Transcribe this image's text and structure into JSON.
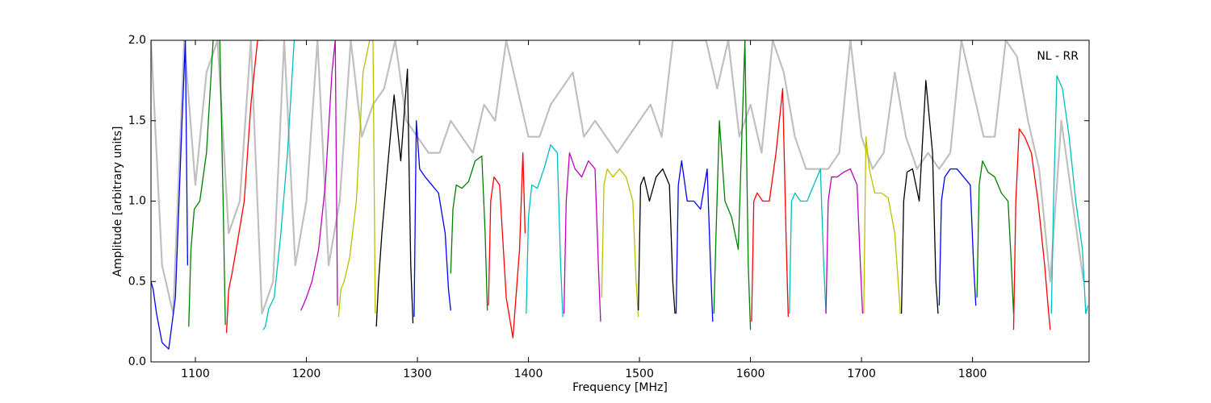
{
  "chart_data": {
    "type": "line",
    "annotation": "NL - RR",
    "xlabel": "Frequency [MHz]",
    "ylabel": "Amplitude [arbitrary units]",
    "xlim": [
      1060,
      1905
    ],
    "ylim": [
      0,
      2
    ],
    "xticks": [
      1100,
      1200,
      1300,
      1400,
      1500,
      1600,
      1700,
      1800
    ],
    "yticks": [
      {
        "value": 0,
        "label": "0.0"
      },
      0.5,
      {
        "value": 1,
        "label": "1.0"
      },
      1.5,
      {
        "value": 2,
        "label": "2.0"
      }
    ],
    "grid": false,
    "series": [
      {
        "color": "#c0c0c0",
        "width": 2.2,
        "x": [
          1060,
          1070,
          1080,
          1090,
          1100,
          1110,
          1120,
          1130,
          1140,
          1150,
          1160,
          1170,
          1180,
          1190,
          1200,
          1210,
          1220,
          1230,
          1240,
          1250,
          1260,
          1270,
          1280,
          1290,
          1300,
          1310,
          1320,
          1330,
          1340,
          1350,
          1360,
          1370,
          1380,
          1390,
          1400,
          1410,
          1420,
          1430,
          1440,
          1450,
          1460,
          1470,
          1480,
          1490,
          1500,
          1510,
          1520,
          1530,
          1540,
          1550,
          1560,
          1570,
          1580,
          1590,
          1600,
          1610,
          1620,
          1630,
          1640,
          1650,
          1660,
          1670,
          1680,
          1690,
          1700,
          1710,
          1720,
          1730,
          1740,
          1750,
          1760,
          1770,
          1780,
          1790,
          1800,
          1810,
          1820,
          1830,
          1840,
          1850,
          1860,
          1870,
          1880,
          1890,
          1900
        ],
        "values": [
          2.0,
          0.6,
          0.3,
          2.0,
          1.1,
          1.8,
          2.0,
          0.8,
          1.0,
          2.0,
          0.3,
          0.5,
          2.0,
          0.6,
          1.0,
          2.0,
          0.6,
          1.0,
          2.0,
          1.4,
          1.6,
          1.7,
          2.0,
          1.5,
          1.4,
          1.3,
          1.3,
          1.5,
          1.4,
          1.3,
          1.6,
          1.5,
          2.0,
          1.7,
          1.4,
          1.4,
          1.6,
          1.7,
          1.8,
          1.4,
          1.5,
          1.4,
          1.3,
          1.4,
          1.5,
          1.6,
          1.4,
          2.0,
          2.0,
          2.0,
          2.0,
          1.7,
          2.0,
          1.4,
          1.6,
          1.3,
          2.0,
          1.8,
          1.4,
          1.2,
          1.2,
          1.2,
          1.3,
          2.0,
          1.4,
          1.2,
          1.3,
          1.8,
          1.4,
          1.2,
          1.3,
          1.2,
          1.3,
          2.0,
          1.7,
          1.4,
          1.4,
          2.0,
          1.9,
          1.5,
          1.2,
          0.5,
          1.5,
          1.0,
          0.5
        ]
      },
      {
        "color": "#0000ff",
        "x": [
          1060,
          1062,
          1065,
          1070,
          1076,
          1082,
          1088,
          1091,
          1093
        ],
        "values": [
          0.5,
          0.45,
          0.3,
          0.12,
          0.08,
          0.4,
          1.5,
          2.0,
          0.6
        ]
      },
      {
        "color": "#008000",
        "x": [
          1094,
          1096,
          1099,
          1104,
          1110,
          1116,
          1122,
          1125,
          1127
        ],
        "values": [
          0.22,
          0.7,
          0.95,
          1.0,
          1.3,
          2.0,
          2.0,
          1.0,
          0.23
        ]
      },
      {
        "color": "#ff0000",
        "x": [
          1128,
          1130,
          1133,
          1138,
          1144,
          1150,
          1156,
          1159,
          1161
        ],
        "values": [
          0.18,
          0.45,
          0.55,
          0.75,
          1.0,
          1.6,
          2.0,
          2.0,
          2.0
        ]
      },
      {
        "color": "#00bfbf",
        "x": [
          1161,
          1163,
          1166,
          1171,
          1177,
          1183,
          1189,
          1192,
          1194
        ],
        "values": [
          0.2,
          0.22,
          0.33,
          0.4,
          0.8,
          1.3,
          2.0,
          2.0,
          2.0
        ]
      },
      {
        "color": "#bf00bf",
        "x": [
          1195,
          1197,
          1200,
          1205,
          1211,
          1217,
          1223,
          1226,
          1228
        ],
        "values": [
          0.32,
          0.35,
          0.4,
          0.5,
          0.7,
          1.1,
          1.8,
          2.0,
          0.35
        ]
      },
      {
        "color": "#bfbf00",
        "x": [
          1229,
          1231,
          1234,
          1239,
          1245,
          1251,
          1257,
          1260,
          1262
        ],
        "values": [
          0.28,
          0.45,
          0.5,
          0.65,
          1.0,
          1.8,
          2.0,
          2.0,
          0.3
        ]
      },
      {
        "color": "#000000",
        "x": [
          1263,
          1265,
          1268,
          1273,
          1279,
          1285,
          1291,
          1294,
          1296
        ],
        "values": [
          0.22,
          0.5,
          0.8,
          1.2,
          1.66,
          1.25,
          1.82,
          0.6,
          0.24
        ]
      },
      {
        "color": "#0000ff",
        "x": [
          1297,
          1299,
          1302,
          1307,
          1313,
          1319,
          1325,
          1328,
          1330
        ],
        "values": [
          0.28,
          1.5,
          1.2,
          1.15,
          1.1,
          1.05,
          0.8,
          0.45,
          0.32
        ]
      },
      {
        "color": "#008000",
        "x": [
          1330,
          1332,
          1335,
          1340,
          1346,
          1352,
          1358,
          1361,
          1363
        ],
        "values": [
          0.55,
          0.95,
          1.1,
          1.08,
          1.12,
          1.25,
          1.28,
          0.8,
          0.32
        ]
      },
      {
        "color": "#ff0000",
        "x": [
          1364,
          1366,
          1369,
          1374,
          1380,
          1386,
          1392,
          1395,
          1397
        ],
        "values": [
          0.35,
          1.0,
          1.15,
          1.1,
          0.4,
          0.15,
          0.7,
          1.3,
          0.8
        ]
      },
      {
        "color": "#00bfbf",
        "x": [
          1398,
          1400,
          1403,
          1408,
          1414,
          1420,
          1426,
          1429,
          1431
        ],
        "values": [
          0.3,
          0.9,
          1.1,
          1.08,
          1.2,
          1.35,
          1.3,
          0.6,
          0.28
        ]
      },
      {
        "color": "#bf00bf",
        "x": [
          1432,
          1434,
          1437,
          1442,
          1448,
          1454,
          1460,
          1463,
          1465
        ],
        "values": [
          0.3,
          1.0,
          1.3,
          1.2,
          1.15,
          1.25,
          1.2,
          0.6,
          0.25
        ]
      },
      {
        "color": "#bfbf00",
        "x": [
          1466,
          1468,
          1471,
          1476,
          1482,
          1488,
          1494,
          1497,
          1499
        ],
        "values": [
          0.4,
          1.1,
          1.2,
          1.15,
          1.2,
          1.15,
          1.0,
          0.5,
          0.28
        ]
      },
      {
        "color": "#000000",
        "x": [
          1499,
          1501,
          1504,
          1509,
          1515,
          1521,
          1527,
          1530,
          1532
        ],
        "values": [
          0.32,
          1.1,
          1.15,
          1.0,
          1.15,
          1.2,
          1.1,
          0.5,
          0.3
        ]
      },
      {
        "color": "#0000ff",
        "x": [
          1533,
          1535,
          1538,
          1543,
          1549,
          1555,
          1561,
          1564,
          1566
        ],
        "values": [
          0.3,
          1.1,
          1.25,
          1.0,
          1.0,
          0.95,
          1.2,
          0.6,
          0.25
        ]
      },
      {
        "color": "#008000",
        "x": [
          1567,
          1569,
          1572,
          1577,
          1583,
          1589,
          1595,
          1598,
          1600
        ],
        "values": [
          0.3,
          0.8,
          1.5,
          1.0,
          0.9,
          0.7,
          2.0,
          0.6,
          0.2
        ]
      },
      {
        "color": "#ff0000",
        "x": [
          1601,
          1603,
          1606,
          1611,
          1617,
          1623,
          1629,
          1632,
          1634
        ],
        "values": [
          0.25,
          1.0,
          1.05,
          1.0,
          1.0,
          1.3,
          1.7,
          0.8,
          0.28
        ]
      },
      {
        "color": "#00bfbf",
        "x": [
          1635,
          1637,
          1640,
          1645,
          1651,
          1657,
          1663,
          1666,
          1668
        ],
        "values": [
          0.3,
          1.0,
          1.05,
          1.0,
          1.0,
          1.1,
          1.2,
          0.6,
          0.3
        ]
      },
      {
        "color": "#bf00bf",
        "x": [
          1668,
          1670,
          1673,
          1678,
          1684,
          1690,
          1696,
          1699,
          1701
        ],
        "values": [
          0.3,
          1.0,
          1.15,
          1.15,
          1.18,
          1.2,
          1.1,
          0.6,
          0.3
        ]
      },
      {
        "color": "#bfbf00",
        "x": [
          1702,
          1704,
          1707,
          1712,
          1718,
          1724,
          1730,
          1733,
          1735
        ],
        "values": [
          0.3,
          1.4,
          1.2,
          1.05,
          1.05,
          1.02,
          0.8,
          0.5,
          0.3
        ]
      },
      {
        "color": "#000000",
        "x": [
          1736,
          1738,
          1741,
          1746,
          1752,
          1758,
          1764,
          1767,
          1769
        ],
        "values": [
          0.3,
          1.0,
          1.18,
          1.2,
          1.0,
          1.75,
          1.3,
          0.5,
          0.3
        ]
      },
      {
        "color": "#0000ff",
        "x": [
          1770,
          1772,
          1775,
          1780,
          1786,
          1792,
          1798,
          1801,
          1803
        ],
        "values": [
          0.35,
          1.0,
          1.15,
          1.2,
          1.2,
          1.15,
          1.1,
          0.6,
          0.35
        ]
      },
      {
        "color": "#008000",
        "x": [
          1804,
          1806,
          1809,
          1814,
          1820,
          1826,
          1832,
          1835,
          1837
        ],
        "values": [
          0.4,
          1.1,
          1.25,
          1.18,
          1.15,
          1.05,
          1.0,
          0.6,
          0.3
        ]
      },
      {
        "color": "#ff0000",
        "x": [
          1837,
          1839,
          1842,
          1847,
          1853,
          1859,
          1865,
          1868,
          1870
        ],
        "values": [
          0.2,
          1.0,
          1.45,
          1.4,
          1.3,
          1.0,
          0.6,
          0.35,
          0.2
        ]
      },
      {
        "color": "#00bfbf",
        "x": [
          1871,
          1873,
          1876,
          1881,
          1887,
          1893,
          1899,
          1902,
          1904
        ],
        "values": [
          0.3,
          1.0,
          1.78,
          1.7,
          1.4,
          1.0,
          0.7,
          0.3,
          0.35
        ]
      }
    ]
  }
}
